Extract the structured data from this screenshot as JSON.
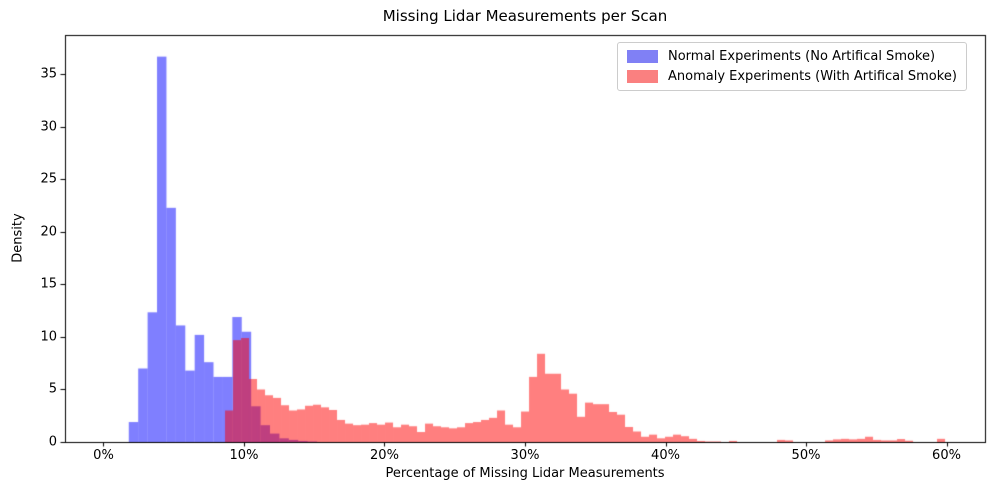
{
  "figure": {
    "background_color": "#ffffff",
    "spine_color": "#000000",
    "text_color": "#000000"
  },
  "chart_data": {
    "type": "histogram",
    "title": "Missing Lidar Measurements per Scan",
    "xlabel": "Percentage of Missing Lidar Measurements",
    "ylabel": "Density",
    "grid": false,
    "legend_position": "upper right",
    "xlim_pct": [
      -2.74,
      62.74
    ],
    "ylim": [
      0,
      38.76
    ],
    "xticks": {
      "values": [
        0,
        10,
        20,
        30,
        40,
        50,
        60
      ],
      "labels": [
        "0%",
        "10%",
        "20%",
        "30%",
        "40%",
        "50%",
        "60%"
      ]
    },
    "yticks": {
      "values": [
        0,
        5,
        10,
        15,
        20,
        25,
        30,
        35
      ],
      "labels": [
        "0",
        "5",
        "10",
        "15",
        "20",
        "25",
        "30",
        "35"
      ]
    },
    "series": [
      {
        "name": "Normal Experiments (No Artifical Smoke)",
        "color": "rgba(0,0,255,0.5)",
        "legend_swatch_color": "#8080f5",
        "bin_start_pct": 1.8,
        "bin_width_pct": 0.67,
        "densities": [
          1.9,
          7.0,
          12.35,
          36.7,
          22.3,
          11.1,
          6.8,
          10.2,
          7.6,
          6.2,
          6.2,
          11.9,
          10.5,
          3.4,
          1.6,
          0.8,
          0.35,
          0.2,
          0.1,
          0.05
        ]
      },
      {
        "name": "Anomaly Experiments (With Artifical Smoke)",
        "color": "rgba(255,0,0,0.5)",
        "legend_swatch_color": "#fa8080",
        "bin_start_pct": 8.65,
        "bin_width_pct": 0.5694,
        "densities": [
          3.0,
          9.7,
          9.9,
          6.0,
          5.0,
          4.45,
          4.2,
          3.5,
          3.0,
          3.1,
          3.45,
          3.55,
          3.3,
          3.05,
          2.1,
          1.75,
          1.6,
          1.65,
          1.8,
          1.65,
          1.85,
          1.4,
          1.65,
          1.5,
          0.95,
          1.75,
          1.5,
          1.4,
          1.3,
          1.4,
          1.8,
          1.9,
          2.1,
          2.3,
          3.0,
          1.65,
          1.4,
          2.9,
          6.2,
          8.4,
          6.5,
          6.5,
          5.0,
          4.6,
          2.4,
          3.75,
          3.6,
          3.6,
          2.86,
          2.6,
          1.43,
          1.0,
          0.5,
          0.7,
          0.35,
          0.5,
          0.7,
          0.55,
          0.3,
          0.1,
          0.05,
          0.05,
          0,
          0.1,
          0,
          0,
          0,
          0,
          0,
          0.2,
          0.15,
          0,
          0,
          0,
          0,
          0.15,
          0.25,
          0.3,
          0.25,
          0.3,
          0.5,
          0.2,
          0.15,
          0.15,
          0.28,
          0.12,
          0,
          0,
          0,
          0.3,
          0
        ]
      }
    ]
  }
}
